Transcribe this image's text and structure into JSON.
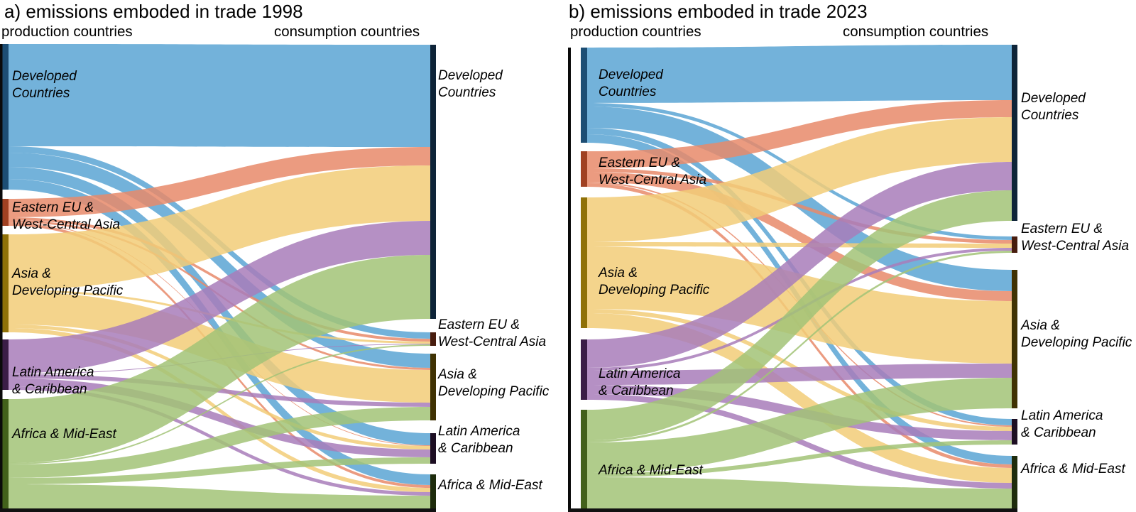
{
  "chart_data": [
    {
      "type": "sankey",
      "title": "a) emissions emboded in trade 1998",
      "left_axis_label": "production countries",
      "right_axis_label": "consumption countries",
      "regions": [
        "Developed Countries",
        "Eastern EU & West-Central Asia",
        "Asia & Developing Pacific",
        "Latin America & Caribbean",
        "Africa & Mid-East"
      ],
      "node_display_labels": [
        "Developed\nCountries",
        "Eastern EU &\nWest-Central Asia",
        "Asia &\nDeveloping Pacific",
        "Latin America\n& Caribbean",
        "Africa & Mid-East"
      ],
      "units": "relative flow width (estimated from pixels, production row to consumption column)",
      "flows": [
        [
          144,
          9,
          20,
          17,
          15
        ],
        [
          26,
          4,
          3,
          1,
          4
        ],
        [
          78,
          3,
          46,
          5,
          6
        ],
        [
          48,
          1,
          6,
          11,
          5
        ],
        [
          90,
          2,
          19,
          9,
          35
        ]
      ],
      "flow_colors": [
        "#5ba4d4",
        "#e78a6a",
        "#f2cd78",
        "#a87cba",
        "#a2c377"
      ],
      "node_bar_colors_left": [
        "#1d4e74",
        "#a04122",
        "#8f7108",
        "#3b1d47",
        "#42611b"
      ],
      "node_bar_colors_right": [
        "#0e2438",
        "#481d0e",
        "#403203",
        "#1d0e23",
        "#1e2c0c"
      ],
      "legend_position": "none",
      "grid": "off"
    },
    {
      "type": "sankey",
      "title": "b) emissions emboded in trade 2023",
      "left_axis_label": "production countries",
      "right_axis_label": "consumption countries",
      "regions": [
        "Developed Countries",
        "Eastern EU & West-Central Asia",
        "Asia & Developing Pacific",
        "Latin America & Caribbean",
        "Africa & Mid-East"
      ],
      "node_display_labels": [
        "Developed\nCountries",
        "Eastern EU &\nWest-Central Asia",
        "Asia &\nDeveloping Pacific",
        "Latin America\n& Caribbean",
        "Africa & Mid-East"
      ],
      "units": "relative flow width (estimated from pixels, production row to consumption column)",
      "flows": [
        [
          78,
          5,
          30,
          9,
          12
        ],
        [
          24,
          5,
          14,
          2,
          5
        ],
        [
          63,
          6,
          88,
          6,
          21
        ],
        [
          40,
          4,
          20,
          13,
          8
        ],
        [
          43,
          3,
          43,
          6,
          45
        ]
      ],
      "flow_colors": [
        "#5ba4d4",
        "#e78a6a",
        "#f2cd78",
        "#a87cba",
        "#a2c377"
      ],
      "node_bar_colors_left": [
        "#1d4e74",
        "#a04122",
        "#8f7108",
        "#3b1d47",
        "#42611b"
      ],
      "node_bar_colors_right": [
        "#0e2438",
        "#481d0e",
        "#403203",
        "#1d0e23",
        "#1e2c0c"
      ],
      "legend_position": "none",
      "grid": "off"
    }
  ]
}
